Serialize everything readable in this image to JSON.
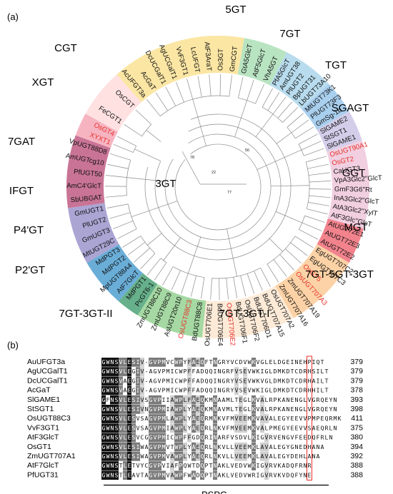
{
  "panel_a": {
    "label": "(a)",
    "tree_numbers": [
      "22",
      "77",
      "56",
      "78"
    ],
    "clades": [
      {
        "name": "3GT",
        "color": "#fbe6a4",
        "leaves": [
          {
            "text": "AcUFGT3a"
          },
          {
            "text": "AcGaT"
          },
          {
            "text": "DcUCGalT1"
          },
          {
            "text": "AgUCGalT1"
          },
          {
            "text": "VvF3GT1"
          },
          {
            "text": "LcUFGT"
          },
          {
            "text": "AtF3AraT"
          },
          {
            "text": "Os3GT"
          },
          {
            "text": "GmCGT"
          }
        ]
      },
      {
        "name": "5GT",
        "color": "#b9e4c2",
        "leaves": [
          {
            "text": "GtA5GlcT"
          },
          {
            "text": "AtF5GlcT"
          },
          {
            "text": "VhA5GT"
          }
        ]
      },
      {
        "name": "7GT",
        "color": "#b8dcee",
        "leaves": [
          {
            "text": "PfA5GlcT"
          },
          {
            "text": "AmUGT38"
          },
          {
            "text": "PlUGT2"
          },
          {
            "text": "BpUGT31"
          },
          {
            "text": "LbUGT73A10"
          }
        ]
      },
      {
        "name": "TGT",
        "color": "#a9cfee",
        "leaves": [
          {
            "text": "MtUGT73K1"
          },
          {
            "text": "PlUGT73F3"
          },
          {
            "text": "GmSg-1b"
          }
        ]
      },
      {
        "name": "SGAGT",
        "color": "#d4cdea",
        "leaves": [
          {
            "text": "SlGAME2"
          },
          {
            "text": "StSGT1"
          },
          {
            "text": "SlGAME1"
          }
        ]
      },
      {
        "name": "GGT",
        "color": "#f1cfe0",
        "leaves": [
          {
            "text": "OsUGT90A1",
            "red": true
          },
          {
            "text": "OsGT2",
            "red": true
          },
          {
            "text": "CaUGT3"
          },
          {
            "text": "VpA3Glc2''GlcT"
          },
          {
            "text": "GmF3G6''Rt"
          },
          {
            "text": "InA3Glc2''GlcT"
          },
          {
            "text": "AtA3Glc2''XylT"
          },
          {
            "text": "AtF3Glc''GlcT"
          }
        ]
      },
      {
        "name": "MGT",
        "color": "#f2838d",
        "leaves": [
          {
            "text": "AtUGT72E1"
          },
          {
            "text": "AtUGT72E3"
          },
          {
            "text": "AtUGT72E2"
          }
        ]
      },
      {
        "name": "7GT-5GT-3GT",
        "color": "#fcd2a6",
        "leaves": [
          {
            "text": "EgUGT707C2"
          },
          {
            "text": "EgUGT707C3"
          },
          {
            "text": "OsGT5",
            "red": true
          },
          {
            "text": "OsUGT707A3",
            "red": true
          },
          {
            "text": "ZmUGT707A19"
          },
          {
            "text": "ZmUGT707A16"
          }
        ]
      },
      {
        "name": "7GT-3GT-I",
        "color": "#fdebd8",
        "leaves": [
          {
            "text": "OsUGT707A2"
          },
          {
            "text": "BdUGT707A15"
          },
          {
            "text": "BdUGT706D1"
          },
          {
            "text": "OsUGT706F2"
          },
          {
            "text": "BdUGT706F1"
          },
          {
            "text": "OsUGT706E2",
            "red": true
          },
          {
            "text": "BdUGT706E4"
          },
          {
            "text": "OsUGT706E1"
          }
        ]
      },
      {
        "name": "7GT-3GT-II",
        "color": "#a5d8a2",
        "leaves": [
          {
            "text": "BdUGT88C8"
          },
          {
            "text": "OsUGT88C3",
            "red": true
          },
          {
            "text": "AsUGT20n10"
          },
          {
            "text": "ZmUGT88C9"
          },
          {
            "text": "ZmUGT88C10"
          }
        ]
      },
      {
        "name": "P2'GT",
        "color": "#66b08b",
        "leaves": [
          {
            "text": "PcGT6-1"
          },
          {
            "text": "MdPGT1"
          }
        ]
      },
      {
        "name": "P4'GT",
        "color": "#6aaed8",
        "leaves": [
          {
            "text": "AtF7GlcT"
          },
          {
            "text": "MpUGT88A4"
          },
          {
            "text": "MdPGT2"
          },
          {
            "text": "MdPGT3"
          }
        ]
      },
      {
        "name": "IFGT",
        "color": "#aba5d4",
        "leaves": [
          {
            "text": "MtUGT29C"
          },
          {
            "text": "GmUGT3"
          },
          {
            "text": "PlUGT2"
          },
          {
            "text": "GmUGT1"
          }
        ]
      },
      {
        "name": "7GAT",
        "color": "#c97496",
        "leaves": [
          {
            "text": "SbUBGAT"
          },
          {
            "text": "AmC4'GlcT"
          },
          {
            "text": "PfUGT50"
          },
          {
            "text": "AmUGTcg10"
          },
          {
            "text": "VpUGT88D8"
          }
        ]
      },
      {
        "name": "XGT",
        "color": "#f6b4c1",
        "leaves": [
          {
            "text": "XYXT1",
            "red": true
          },
          {
            "text": "OsGT4",
            "red": true
          }
        ]
      },
      {
        "name": "CGT",
        "color": "#ffe1e1",
        "leaves": [
          {
            "text": "FeCGT1"
          },
          {
            "text": "OsCGT"
          }
        ]
      }
    ]
  },
  "panel_b": {
    "label": "(b)",
    "motif": "PSPG",
    "rows": [
      {
        "name": "AuUFGT3a",
        "seq": "GWNSVLESIV-GVPMVCWPYFAEQFTNGRYVCDVWKVGLELDGEINEHPIQT",
        "num": "379"
      },
      {
        "name": "AgUCGalT1",
        "seq": "GWNSVLEGIV-AGVPMICWPFFADQQINGRFVSEVWKIGLDMKDTCDRHSILT",
        "num": "379"
      },
      {
        "name": "DcUCGalT1",
        "seq": "GWNSVAEGIV-AGVPMICWPFFADQQINGRYVSEVWKVGLDMKDTCDRHAILT",
        "num": "379"
      },
      {
        "name": "AcGaT",
        "seq": "GWNSVAEGIV-AGVPMICWPFFADQQINGRYVSEVWKIGLDMKDTCDRHHILT",
        "num": "378"
      },
      {
        "name": "SlGAME1",
        "seq": "GFNSVLESIVSGVPIIAWPLFAEQKMNAAMLTEGLKVALRPKANENGLVGRQEYN",
        "num": "393"
      },
      {
        "name": "StSGT1",
        "seq": "GWNSVLESIVNGVPMIAWPLYAEQKMNAVMLTEGLKVALRPKANENGLVGRQEYN",
        "num": "398"
      },
      {
        "name": "OsUGT88C3",
        "seq": "GWNSVLESVSAGVPMLAWPLYAEQRMNKVFMVEEMKVAVALEGYEEVVPMPEQRMK",
        "num": "411"
      },
      {
        "name": "VvF3GT1",
        "seq": "GWNSVLESVSAGVPMIAWPLYAEQRLNKVFMVEEMKVALPMEGYEEVVSAEQRLN",
        "num": "375"
      },
      {
        "name": "AtF3GlcT",
        "seq": "GWNSVLESVCGGVPMICWPFFGDQRINARFVSDVLKIGVRVENGVFEEDQFRLN",
        "num": "380"
      },
      {
        "name": "OsGT1",
        "seq": "GWNSVLESIWAGVPMVTWPLYAEQRLNKVLLVEEMKLAVALEGYGNEDHANA",
        "num": "394"
      },
      {
        "name": "ZmUGT707A1",
        "seq": "GWNSVLESIWAGVPMVAWPLYAEQRLNKVLLVEEMKLAVALEGYDEHLANA",
        "num": "392"
      },
      {
        "name": "AtF7GlcT",
        "seq": "GWNSTLETVYCGVPVIAFPQWTDQPTNAKLVEDVWKIGVRVKADQFRNR",
        "num": "388"
      },
      {
        "name": "PfUGT31",
        "seq": "GWNSTLEAVTAGVPMVAWPFWADQPTNAKLVEDVWRIGVRVKVDQFYNE",
        "num": "388"
      }
    ]
  }
}
